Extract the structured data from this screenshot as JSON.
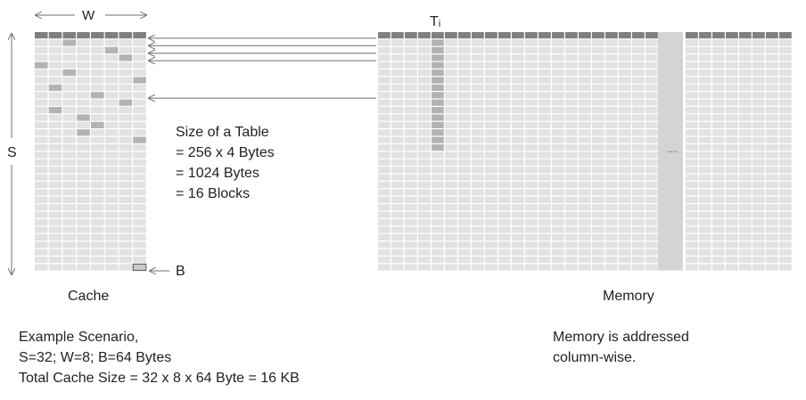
{
  "labels": {
    "width": "W",
    "sets": "S",
    "block": "B",
    "table": "Tᵢ",
    "cache": "Cache",
    "memory": "Memory",
    "ellipsis": "...."
  },
  "table_size": {
    "line1": "Size of a Table",
    "line2": "= 256 x 4 Bytes",
    "line3": "= 1024 Bytes",
    "line4": "= 16 Blocks"
  },
  "scenario": {
    "line1": "Example Scenario,",
    "line2": "S=32; W=8; B=64 Bytes",
    "line3": "Total Cache Size = 32 x 8 x 64 Byte = 16 KB"
  },
  "memory_note": {
    "line1": "Memory is addressed",
    "line2": "column-wise."
  },
  "cache": {
    "sets": 32,
    "ways": 8,
    "highlighted": [
      [
        0,
        0
      ],
      [
        0,
        1
      ],
      [
        0,
        2
      ],
      [
        0,
        3
      ],
      [
        0,
        4
      ],
      [
        0,
        5
      ],
      [
        0,
        6
      ],
      [
        0,
        7
      ],
      [
        1,
        2
      ],
      [
        2,
        5
      ],
      [
        3,
        6
      ],
      [
        4,
        0
      ],
      [
        5,
        2
      ],
      [
        6,
        7
      ],
      [
        7,
        1
      ],
      [
        8,
        4
      ],
      [
        9,
        6
      ],
      [
        10,
        1
      ],
      [
        11,
        3
      ],
      [
        12,
        4
      ],
      [
        13,
        3
      ],
      [
        14,
        7
      ]
    ]
  },
  "memory": {
    "rows": 32,
    "columns": 31,
    "table_column": 4,
    "table_blocks": 16,
    "shaded_column": 21
  },
  "colors": {
    "cell": "#e2e2e2",
    "header": "#7f7f7f",
    "highlight": "#b3b3b3",
    "shaded": "#d4d4d4",
    "arrow": "#6f6f6f"
  }
}
